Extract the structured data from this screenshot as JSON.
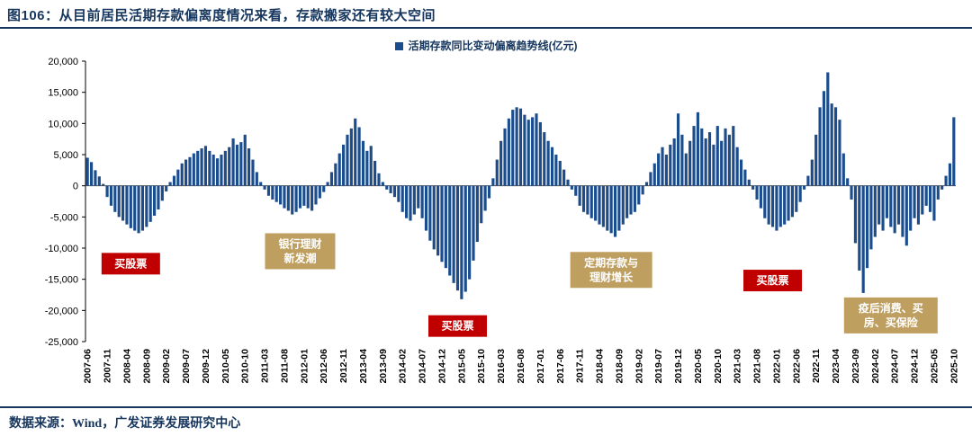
{
  "header": {
    "title": "图106：从目前居民活期存款偏离度情况来看，存款搬家还有较大空间"
  },
  "footer": {
    "source": "数据来源：Wind，广发证券发展研究中心"
  },
  "colors": {
    "accent": "#17365D",
    "bar": "#1B4C8C",
    "red_box": "#C00000",
    "tan_box": "#BF9F60"
  },
  "chart_data": {
    "type": "bar",
    "series_name": "活期存款同比变动偏离趋势线(亿元)",
    "unit": "亿元",
    "frequency": "monthly",
    "x_start": "2007-06",
    "x_end": "2025-10",
    "ylim": [
      -25000,
      20000
    ],
    "ytick_step": 5000,
    "xtick_every": 5,
    "grid": false,
    "legend_position": "top-center",
    "bar_color": "#1B4C8C",
    "x_tick_labels": [
      "2007-06",
      "2007-11",
      "2008-04",
      "2008-09",
      "2009-02",
      "2009-07",
      "2009-12",
      "2010-05",
      "2010-10",
      "2011-03",
      "2011-08",
      "2012-01",
      "2012-06",
      "2012-11",
      "2013-04",
      "2013-09",
      "2014-02",
      "2014-07",
      "2014-12",
      "2015-05",
      "2015-10",
      "2016-03",
      "2016-08",
      "2017-01",
      "2017-06",
      "2017-11",
      "2018-04",
      "2018-09",
      "2019-02",
      "2019-07",
      "2019-12",
      "2020-05",
      "2020-10",
      "2021-03",
      "2021-08",
      "2022-01",
      "2022-06",
      "2022-11",
      "2023-04",
      "2023-09",
      "2024-02",
      "2024-07",
      "2024-12",
      "2025-05",
      "2025-10"
    ],
    "values": [
      4500,
      3800,
      2500,
      1500,
      300,
      -1800,
      -3200,
      -4200,
      -5000,
      -5600,
      -6200,
      -6800,
      -7200,
      -7600,
      -7200,
      -6600,
      -5800,
      -4800,
      -3800,
      -2400,
      -900,
      600,
      1600,
      2600,
      3600,
      4200,
      4600,
      5200,
      5600,
      6000,
      6400,
      5600,
      5000,
      4400,
      5000,
      5600,
      6200,
      7600,
      6600,
      7000,
      8200,
      6000,
      4200,
      2200,
      600,
      -600,
      -1600,
      -2200,
      -2600,
      -3000,
      -3600,
      -4000,
      -4600,
      -4200,
      -3600,
      -3200,
      -3600,
      -4000,
      -3000,
      -2000,
      -1000,
      600,
      2200,
      3600,
      5200,
      6600,
      8200,
      9200,
      10800,
      9400,
      7200,
      5600,
      6400,
      4000,
      2000,
      600,
      -600,
      -1200,
      -1800,
      -2600,
      -4200,
      -5200,
      -5600,
      -4600,
      -3600,
      -5200,
      -7200,
      -8800,
      -10200,
      -11200,
      -12200,
      -13200,
      -14400,
      -15600,
      -16800,
      -18200,
      -17000,
      -15000,
      -12000,
      -9000,
      -6000,
      -4000,
      -2000,
      1200,
      4200,
      7200,
      9200,
      10800,
      12200,
      12600,
      12400,
      11400,
      10600,
      11000,
      11600,
      10200,
      8600,
      7200,
      6200,
      5000,
      4000,
      2600,
      1000,
      -600,
      -1600,
      -3200,
      -4200,
      -4600,
      -5200,
      -5600,
      -6200,
      -6600,
      -7200,
      -7600,
      -8200,
      -7200,
      -6200,
      -5200,
      -4600,
      -4200,
      -3000,
      -1400,
      600,
      2200,
      3600,
      5200,
      6200,
      5000,
      6600,
      7600,
      11600,
      8200,
      5200,
      7200,
      9600,
      11800,
      9200,
      7600,
      8600,
      6600,
      9600,
      7200,
      9200,
      8200,
      9600,
      6200,
      4200,
      2600,
      1000,
      -600,
      -2200,
      -3600,
      -5200,
      -6200,
      -6600,
      -7200,
      -6600,
      -6200,
      -5600,
      -5000,
      -4200,
      -2600,
      -600,
      1600,
      4200,
      8200,
      12600,
      15200,
      18200,
      13200,
      12600,
      10600,
      5200,
      1200,
      -2200,
      -9200,
      -13600,
      -17200,
      -13200,
      -10200,
      -8200,
      -6200,
      -7200,
      -5200,
      -6600,
      -7600,
      -6200,
      -8200,
      -9600,
      -7200,
      -5200,
      -6200,
      -4600,
      -3200,
      -4200,
      -5600,
      -2200,
      -600,
      1600,
      3600,
      11000
    ],
    "annotations": [
      {
        "lines": [
          "买股票"
        ],
        "index": 11,
        "value": -12500,
        "type": "red"
      },
      {
        "lines": [
          "银行理财",
          "新发潮"
        ],
        "index": 54,
        "value": -10500,
        "type": "tan"
      },
      {
        "lines": [
          "买股票"
        ],
        "index": 94,
        "value": -22500,
        "type": "red"
      },
      {
        "lines": [
          "定期存款与",
          "理财增长"
        ],
        "index": 133,
        "value": -13500,
        "type": "tan"
      },
      {
        "lines": [
          "买股票"
        ],
        "index": 174,
        "value": -15200,
        "type": "red"
      },
      {
        "lines": [
          "疫后消费、买",
          "房、买保险"
        ],
        "index": 204,
        "value": -20800,
        "type": "tan"
      }
    ]
  }
}
